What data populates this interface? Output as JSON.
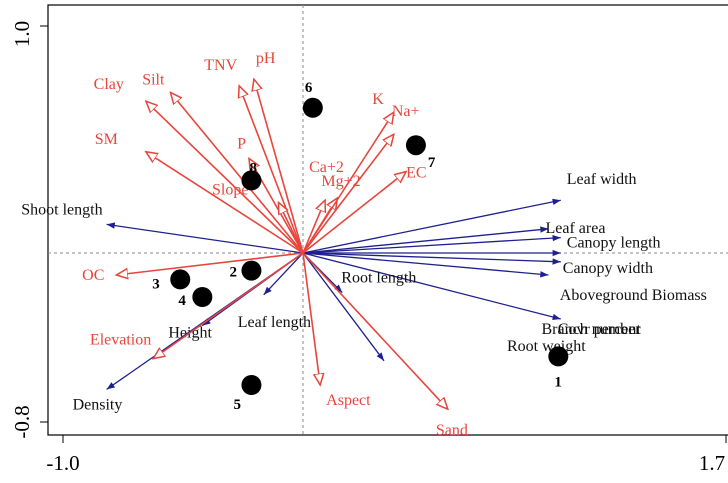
{
  "colors": {
    "environment_arrow": "#e8453c",
    "environment_text": "#e8453c",
    "trait_arrow": "#1f1f8f",
    "trait_text": "#111111",
    "site_marker": "#000000",
    "axis": "#000000",
    "reference_line": "#888888"
  },
  "chart_data": {
    "type": "scatter",
    "title": "",
    "xlabel": "",
    "ylabel": "",
    "xlim": [
      -1.0,
      1.7
    ],
    "ylim": [
      -0.8,
      1.0
    ],
    "grid": false,
    "legend": "none",
    "reference_lines": {
      "x": 0,
      "y": 0
    },
    "x_tick_labels": [
      "-1.0",
      "1.7"
    ],
    "y_tick_labels": [
      "-0.8",
      "1.0"
    ],
    "environment_vectors": [
      {
        "label": "Clay",
        "x": -0.64,
        "y": 0.69
      },
      {
        "label": "Silt",
        "x": -0.54,
        "y": 0.73
      },
      {
        "label": "TNV",
        "x": -0.26,
        "y": 0.76
      },
      {
        "label": "pH",
        "x": -0.2,
        "y": 0.79
      },
      {
        "label": "SM",
        "x": -0.64,
        "y": 0.46
      },
      {
        "label": "P",
        "x": -0.22,
        "y": 0.43
      },
      {
        "label": "Slope",
        "x": -0.1,
        "y": 0.23
      },
      {
        "label": "Ca+2",
        "x": 0.09,
        "y": 0.24
      },
      {
        "label": "Mg+2",
        "x": 0.14,
        "y": 0.25
      },
      {
        "label": "K",
        "x": 0.37,
        "y": 0.64
      },
      {
        "label": "Na+",
        "x": 0.37,
        "y": 0.54
      },
      {
        "label": "EC",
        "x": 0.42,
        "y": 0.37
      },
      {
        "label": "OC",
        "x": -0.76,
        "y": -0.1
      },
      {
        "label": "Elevation",
        "x": -0.61,
        "y": -0.48
      },
      {
        "label": "Aspect",
        "x": 0.07,
        "y": -0.6
      },
      {
        "label": "Sand",
        "x": 0.59,
        "y": -0.71
      }
    ],
    "trait_vectors": [
      {
        "label": "Shoot length",
        "x": -0.8,
        "y": 0.13
      },
      {
        "label": "Leaf width",
        "x": 1.05,
        "y": 0.24
      },
      {
        "label": "Leaf area",
        "x": 1.0,
        "y": 0.11
      },
      {
        "label": "Canopy length",
        "x": 1.05,
        "y": 0.07
      },
      {
        "label": "Canopy width",
        "x": 1.05,
        "y": 0.0
      },
      {
        "label": "Aboveground Biomass",
        "x": 1.05,
        "y": -0.04
      },
      {
        "label": "Branch number",
        "x": 1.0,
        "y": -0.1
      },
      {
        "label": "Covr percent",
        "x": 1.05,
        "y": -0.3
      },
      {
        "label": "Root weight",
        "x": 0.33,
        "y": -0.49
      },
      {
        "label": "Root length",
        "x": 0.16,
        "y": -0.18
      },
      {
        "label": "Leaf length",
        "x": -0.16,
        "y": -0.19
      },
      {
        "label": "Height",
        "x": -0.41,
        "y": -0.33
      },
      {
        "label": "Density",
        "x": -0.8,
        "y": -0.62
      }
    ],
    "sites": [
      {
        "label": "1",
        "x": 1.04,
        "y": -0.47
      },
      {
        "label": "2",
        "x": -0.21,
        "y": -0.08
      },
      {
        "label": "3",
        "x": -0.5,
        "y": -0.12
      },
      {
        "label": "4",
        "x": -0.41,
        "y": -0.2
      },
      {
        "label": "5",
        "x": -0.21,
        "y": -0.6
      },
      {
        "label": "6",
        "x": 0.04,
        "y": 0.66
      },
      {
        "label": "7",
        "x": 0.46,
        "y": 0.49
      },
      {
        "label": "8",
        "x": -0.21,
        "y": 0.33
      }
    ]
  }
}
